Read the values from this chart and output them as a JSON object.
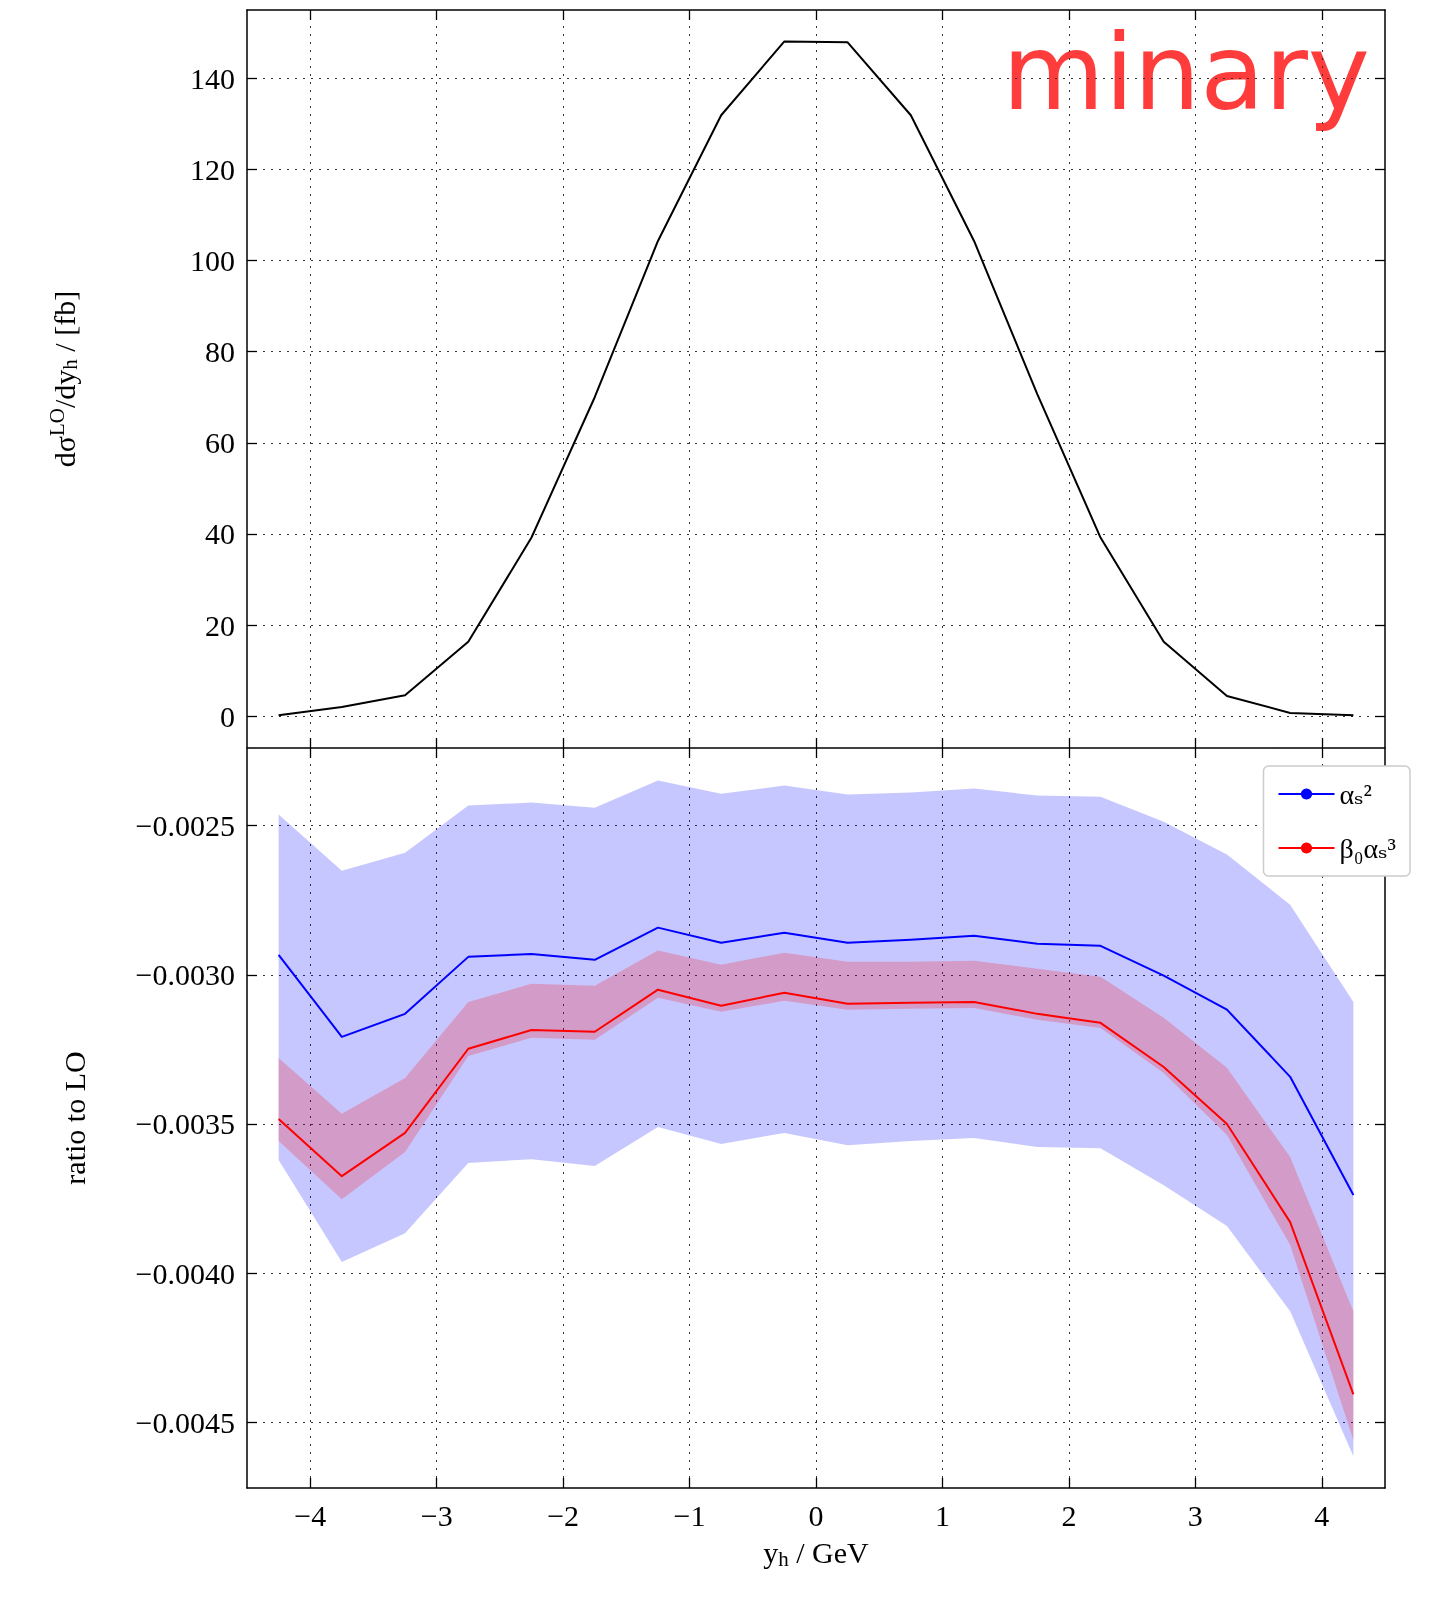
{
  "chart_data": [
    {
      "type": "line",
      "ylabel": "dσ$^{LO}$/dy$_{h}$ / [fb]",
      "annotations": [
        "minary"
      ],
      "x": [
        -4.25,
        -3.75,
        -3.25,
        -2.75,
        -2.25,
        -1.75,
        -1.25,
        -0.75,
        -0.25,
        0.25,
        0.75,
        1.25,
        1.75,
        2.25,
        2.75,
        3.25,
        3.75,
        4.25
      ],
      "series": [
        {
          "color": "#000000",
          "values": [
            0.2,
            2,
            4.6,
            16.3,
            39.2,
            70,
            104.3,
            131.9,
            148.1,
            147.9,
            131.9,
            104.3,
            70.7,
            39.2,
            16.3,
            4.4,
            0.7,
            0.2
          ]
        }
      ],
      "xlim": [
        -4.5,
        4.5
      ],
      "xticks": [
        -4,
        -3,
        -2,
        -1,
        0,
        1,
        2,
        3,
        4
      ],
      "ylim": [
        -7,
        155
      ],
      "yticks": [
        0,
        20,
        40,
        60,
        80,
        100,
        120,
        140
      ],
      "tick_labels": "y",
      "grid": true,
      "marker": "none",
      "line_style": "solid"
    },
    {
      "type": "line",
      "xlabel": "y$_{h}$ / GeV",
      "ylabel": "ratio to LO",
      "x": [
        -4.25,
        -3.75,
        -3.25,
        -2.75,
        -2.25,
        -1.75,
        -1.25,
        -0.75,
        -0.25,
        0.25,
        0.75,
        1.25,
        1.75,
        2.25,
        2.75,
        3.25,
        3.75,
        4.25
      ],
      "series": [
        {
          "name": "αₛ²",
          "color": "#0000ff",
          "values": [
            -0.002933,
            -0.003208,
            -0.003131,
            -0.00294,
            -0.00293,
            -0.00295,
            -0.002842,
            -0.002893,
            -0.002859,
            -0.002893,
            -0.002883,
            -0.002869,
            -0.002896,
            -0.002903,
            -0.003003,
            -0.003117,
            -0.003342,
            -0.003738
          ],
          "upper": [
            -0.002463,
            -0.002651,
            -0.002591,
            -0.002433,
            -0.002423,
            -0.00244,
            -0.002349,
            -0.002393,
            -0.002366,
            -0.002396,
            -0.002389,
            -0.002376,
            -0.002399,
            -0.002403,
            -0.002487,
            -0.002597,
            -0.002765,
            -0.003091
          ],
          "lower": [
            -0.003621,
            -0.003963,
            -0.003866,
            -0.003631,
            -0.003618,
            -0.003641,
            -0.00351,
            -0.003567,
            -0.00353,
            -0.003571,
            -0.003557,
            -0.003547,
            -0.003577,
            -0.003581,
            -0.003705,
            -0.003842,
            -0.004128,
            -0.004614
          ]
        },
        {
          "name": "β₀αₛ³",
          "color": "#ff0000",
          "values": [
            -0.003483,
            -0.003675,
            -0.00353,
            -0.003248,
            -0.003185,
            -0.003191,
            -0.00305,
            -0.003104,
            -0.00306,
            -0.003097,
            -0.003094,
            -0.003091,
            -0.003131,
            -0.003161,
            -0.003309,
            -0.0035,
            -0.003829,
            -0.004406
          ],
          "upper": [
            -0.003279,
            -0.003466,
            -0.003346,
            -0.003091,
            -0.00303,
            -0.003037,
            -0.002919,
            -0.002966,
            -0.002926,
            -0.002956,
            -0.002956,
            -0.002953,
            -0.00298,
            -0.003007,
            -0.003144,
            -0.003312,
            -0.003611,
            -0.004128
          ],
          "lower": [
            -0.003557,
            -0.003752,
            -0.003594,
            -0.003272,
            -0.003211,
            -0.003218,
            -0.003077,
            -0.003124,
            -0.003087,
            -0.003117,
            -0.003114,
            -0.003111,
            -0.003151,
            -0.003178,
            -0.003329,
            -0.003537,
            -0.003906,
            -0.00456
          ]
        }
      ],
      "xlim": [
        -4.5,
        4.5
      ],
      "xticks": [
        {
          "value": -4,
          "label": "−4"
        },
        {
          "value": -3,
          "label": "−3"
        },
        {
          "value": -2,
          "label": "−2"
        },
        {
          "value": -1,
          "label": "−1"
        },
        0,
        1,
        2,
        3,
        4
      ],
      "ylim": [
        -0.00472,
        -0.00224
      ],
      "yticks": [
        {
          "value": -0.0045,
          "label": "−0.0045"
        },
        {
          "value": -0.004,
          "label": "−0.0040"
        },
        {
          "value": -0.0035,
          "label": "−0.0035"
        },
        {
          "value": -0.003,
          "label": "−0.0030"
        },
        {
          "value": -0.0025,
          "label": "−0.0025"
        }
      ],
      "grid": true,
      "legend": "top right",
      "marker": "none",
      "line_style": "solid"
    }
  ]
}
